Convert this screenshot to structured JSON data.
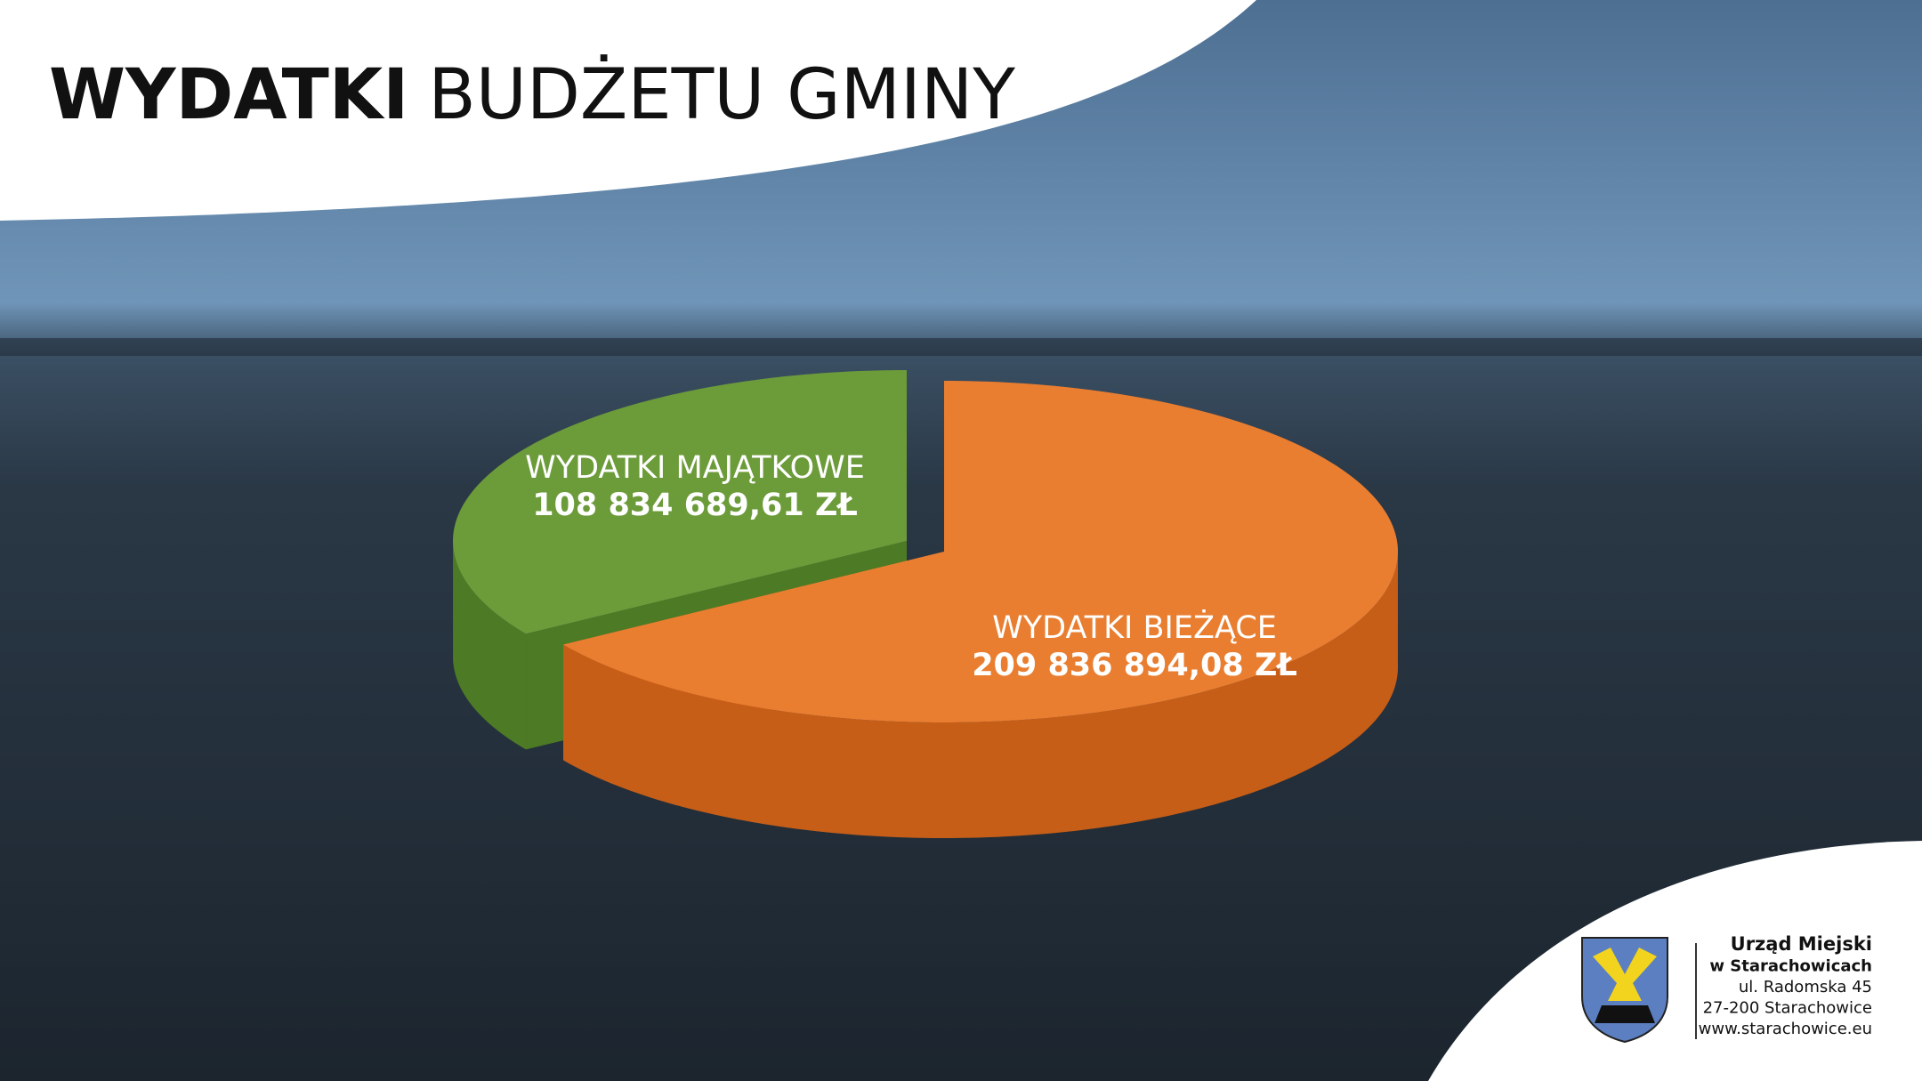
{
  "chart_data": {
    "type": "pie3d",
    "title": [
      "WYDATKI",
      "BUDŻETU GMINY"
    ],
    "categories": [
      "WYDATKI MAJĄTKOWE",
      "WYDATKI BIEŻĄCE"
    ],
    "values": [
      108834689.61,
      209836894.08
    ],
    "value_labels": [
      "108 834 689,61 ZŁ",
      "209 836 894,08 ZŁ"
    ],
    "colors": [
      "#6c9b3a",
      "#e97e31"
    ],
    "side_colors": [
      "#4d7a25",
      "#c65e18"
    ]
  },
  "footer": {
    "lines": [
      "Urząd Miejski",
      "w Starachowicach",
      "ul. Radomska 45",
      "27-200 Starachowice",
      "www.starachowice.eu"
    ]
  }
}
